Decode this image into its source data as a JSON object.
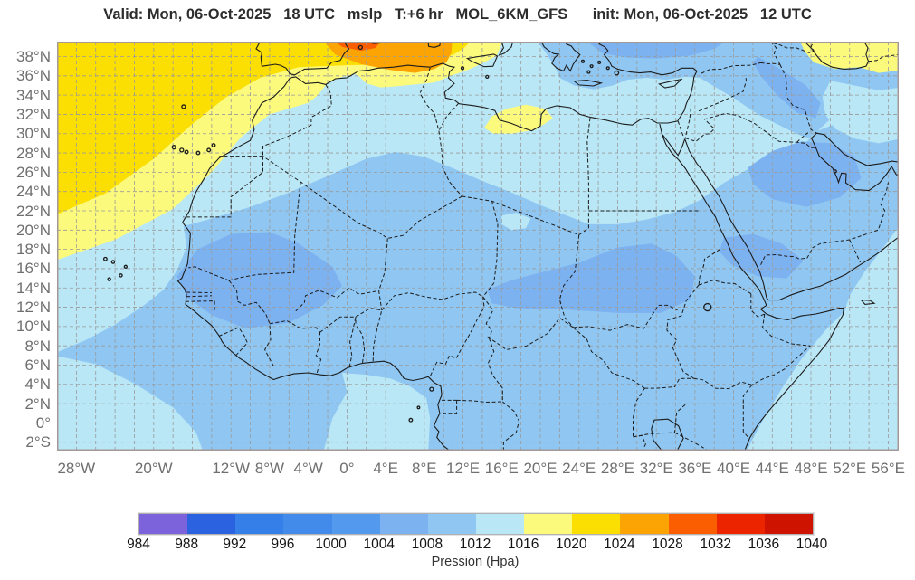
{
  "title": "Valid: Mon, 06-Oct-2025   18 UTC   mslp   T:+6 hr   MOL_6KM_GFS      init: Mon, 06-Oct-2025   12 UTC",
  "map": {
    "lat_ticks": [
      {
        "label": "38°N",
        "deg": 38
      },
      {
        "label": "36°N",
        "deg": 36
      },
      {
        "label": "34°N",
        "deg": 34
      },
      {
        "label": "32°N",
        "deg": 32
      },
      {
        "label": "30°N",
        "deg": 30
      },
      {
        "label": "28°N",
        "deg": 28
      },
      {
        "label": "26°N",
        "deg": 26
      },
      {
        "label": "24°N",
        "deg": 24
      },
      {
        "label": "22°N",
        "deg": 22
      },
      {
        "label": "20°N",
        "deg": 20
      },
      {
        "label": "18°N",
        "deg": 18
      },
      {
        "label": "16°N",
        "deg": 16
      },
      {
        "label": "14°N",
        "deg": 14
      },
      {
        "label": "12°N",
        "deg": 12
      },
      {
        "label": "10°N",
        "deg": 10
      },
      {
        "label": "8°N",
        "deg": 8
      },
      {
        "label": "6°N",
        "deg": 6
      },
      {
        "label": "4°N",
        "deg": 4
      },
      {
        "label": "2°N",
        "deg": 2
      },
      {
        "label": "0°",
        "deg": 0
      },
      {
        "label": "2°S",
        "deg": -2
      }
    ],
    "lon_ticks": [
      {
        "label": "28°W",
        "deg": -28
      },
      {
        "label": "20°W",
        "deg": -20
      },
      {
        "label": "12°W",
        "deg": -12
      },
      {
        "label": "8°W",
        "deg": -8
      },
      {
        "label": "4°W",
        "deg": -4
      },
      {
        "label": "0°",
        "deg": 0
      },
      {
        "label": "4°E",
        "deg": 4
      },
      {
        "label": "8°E",
        "deg": 8
      },
      {
        "label": "12°E",
        "deg": 12
      },
      {
        "label": "16°E",
        "deg": 16
      },
      {
        "label": "20°E",
        "deg": 20
      },
      {
        "label": "24°E",
        "deg": 24
      },
      {
        "label": "28°E",
        "deg": 28
      },
      {
        "label": "32°E",
        "deg": 32
      },
      {
        "label": "36°E",
        "deg": 36
      },
      {
        "label": "40°E",
        "deg": 40
      },
      {
        "label": "44°E",
        "deg": 44
      },
      {
        "label": "48°E",
        "deg": 48
      },
      {
        "label": "52°E",
        "deg": 52
      },
      {
        "label": "56°E",
        "deg": 56
      }
    ]
  },
  "colorbar": {
    "title": "Pression (Hpa)",
    "tick_values": [
      984,
      988,
      992,
      996,
      1000,
      1004,
      1008,
      1012,
      1016,
      1020,
      1024,
      1028,
      1032,
      1036,
      1040
    ],
    "segment_colors": [
      "#7c63db",
      "#2a62e0",
      "#357fe9",
      "#428beb",
      "#539aee",
      "#7db2f1",
      "#8fc7f2",
      "#b9e7f6",
      "#fbfa7d",
      "#fbde02",
      "#fca403",
      "#fb5d01",
      "#ec2500",
      "#ce1400"
    ]
  },
  "chart_data": {
    "type": "heatmap",
    "title": "Valid: Mon, 06-Oct-2025 18 UTC mslp T:+6 hr MOL_6KM_GFS init: Mon, 06-Oct-2025 12 UTC",
    "field": "mslp",
    "colorbar_label": "Pression (Hpa)",
    "colorbar_ticks": [
      984,
      988,
      992,
      996,
      1000,
      1004,
      1008,
      1012,
      1016,
      1020,
      1024,
      1028,
      1032,
      1036,
      1040
    ],
    "colorbar_colors": [
      "#7c63db",
      "#2a62e0",
      "#357fe9",
      "#428beb",
      "#539aee",
      "#7db2f1",
      "#8fc7f2",
      "#b9e7f6",
      "#fbfa7d",
      "#fbde02",
      "#fca403",
      "#fb5d01",
      "#ec2500",
      "#ce1400"
    ],
    "x_ticks": [
      "28°W",
      "20°W",
      "12°W",
      "8°W",
      "4°W",
      "0°",
      "4°E",
      "8°E",
      "12°E",
      "16°E",
      "20°E",
      "24°E",
      "28°E",
      "32°E",
      "36°E",
      "40°E",
      "44°E",
      "48°E",
      "52°E",
      "56°E"
    ],
    "y_ticks": [
      "38°N",
      "36°N",
      "34°N",
      "32°N",
      "30°N",
      "28°N",
      "26°N",
      "24°N",
      "22°N",
      "20°N",
      "18°N",
      "16°N",
      "14°N",
      "12°N",
      "10°N",
      "8°N",
      "6°N",
      "4°N",
      "2°N",
      "0°",
      "2°S"
    ],
    "legend_position": "bottom"
  }
}
